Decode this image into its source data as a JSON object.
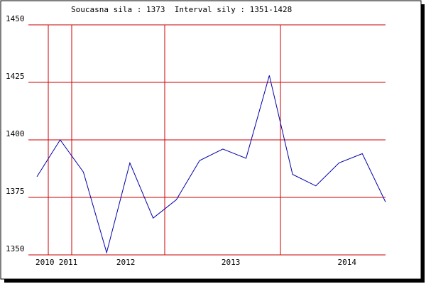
{
  "chart_data": {
    "type": "line",
    "title": "Soucasna sila : 1373  Interval sily : 1351-1428",
    "categories": [
      "2010",
      "2011",
      null,
      null,
      "2012",
      null,
      null,
      null,
      "2013",
      null,
      null,
      null,
      null,
      "2014",
      null,
      null
    ],
    "series": [
      {
        "color": "#0000aa",
        "values": [
          1384,
          1400,
          1386,
          1351,
          1390,
          1366,
          1374,
          1391,
          1396,
          1392,
          1428,
          1385,
          1380,
          1390,
          1394,
          1373
        ]
      }
    ],
    "ylim": [
      1350,
      1450
    ],
    "yticks": [
      1350,
      1375,
      1400,
      1425,
      1450
    ],
    "grid": true,
    "grid_color": "#cc0000"
  }
}
